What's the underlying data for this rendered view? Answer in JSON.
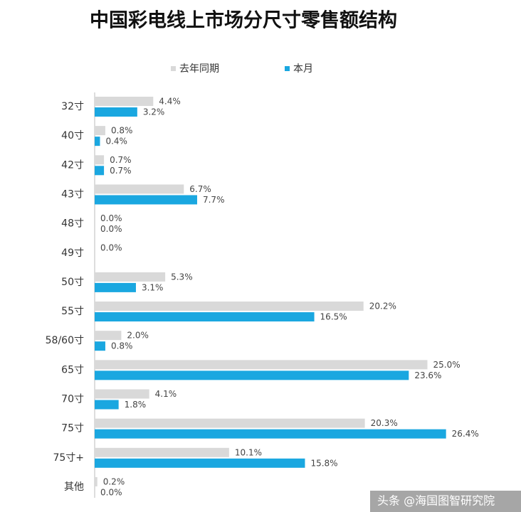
{
  "chart_data": {
    "type": "hbar",
    "title": "中国彩电线上市场分尺寸零售额结构",
    "categories": [
      "32寸",
      "40寸",
      "42寸",
      "43寸",
      "48寸",
      "49寸",
      "50寸",
      "55寸",
      "58/60寸",
      "65寸",
      "70寸",
      "75寸",
      "75寸+",
      "其他"
    ],
    "series": [
      {
        "name": "去年同期",
        "color": "#d9d9d9",
        "values": [
          4.4,
          0.8,
          0.7,
          6.7,
          0.0,
          0.0,
          5.3,
          20.2,
          2.0,
          25.0,
          4.1,
          20.3,
          10.1,
          0.2
        ],
        "value_labels": [
          "4.4%",
          "0.8%",
          "0.7%",
          "6.7%",
          "0.0%",
          "0.0%",
          "5.3%",
          "20.2%",
          "2.0%",
          "25.0%",
          "4.1%",
          "20.3%",
          "10.1%",
          "0.2%"
        ]
      },
      {
        "name": "本月",
        "color": "#1aa7e0",
        "values": [
          3.2,
          0.4,
          0.7,
          7.7,
          0.0,
          null,
          3.1,
          16.5,
          0.8,
          23.6,
          1.8,
          26.4,
          15.8,
          0.0
        ],
        "value_labels": [
          "3.2%",
          "0.4%",
          "0.7%",
          "7.7%",
          "0.0%",
          null,
          "3.1%",
          "16.5%",
          "0.8%",
          "23.6%",
          "1.8%",
          "26.4%",
          "15.8%",
          "0.0%"
        ]
      }
    ],
    "xlim": [
      0,
      30
    ],
    "footer": "头条 @海国图智研究院"
  }
}
